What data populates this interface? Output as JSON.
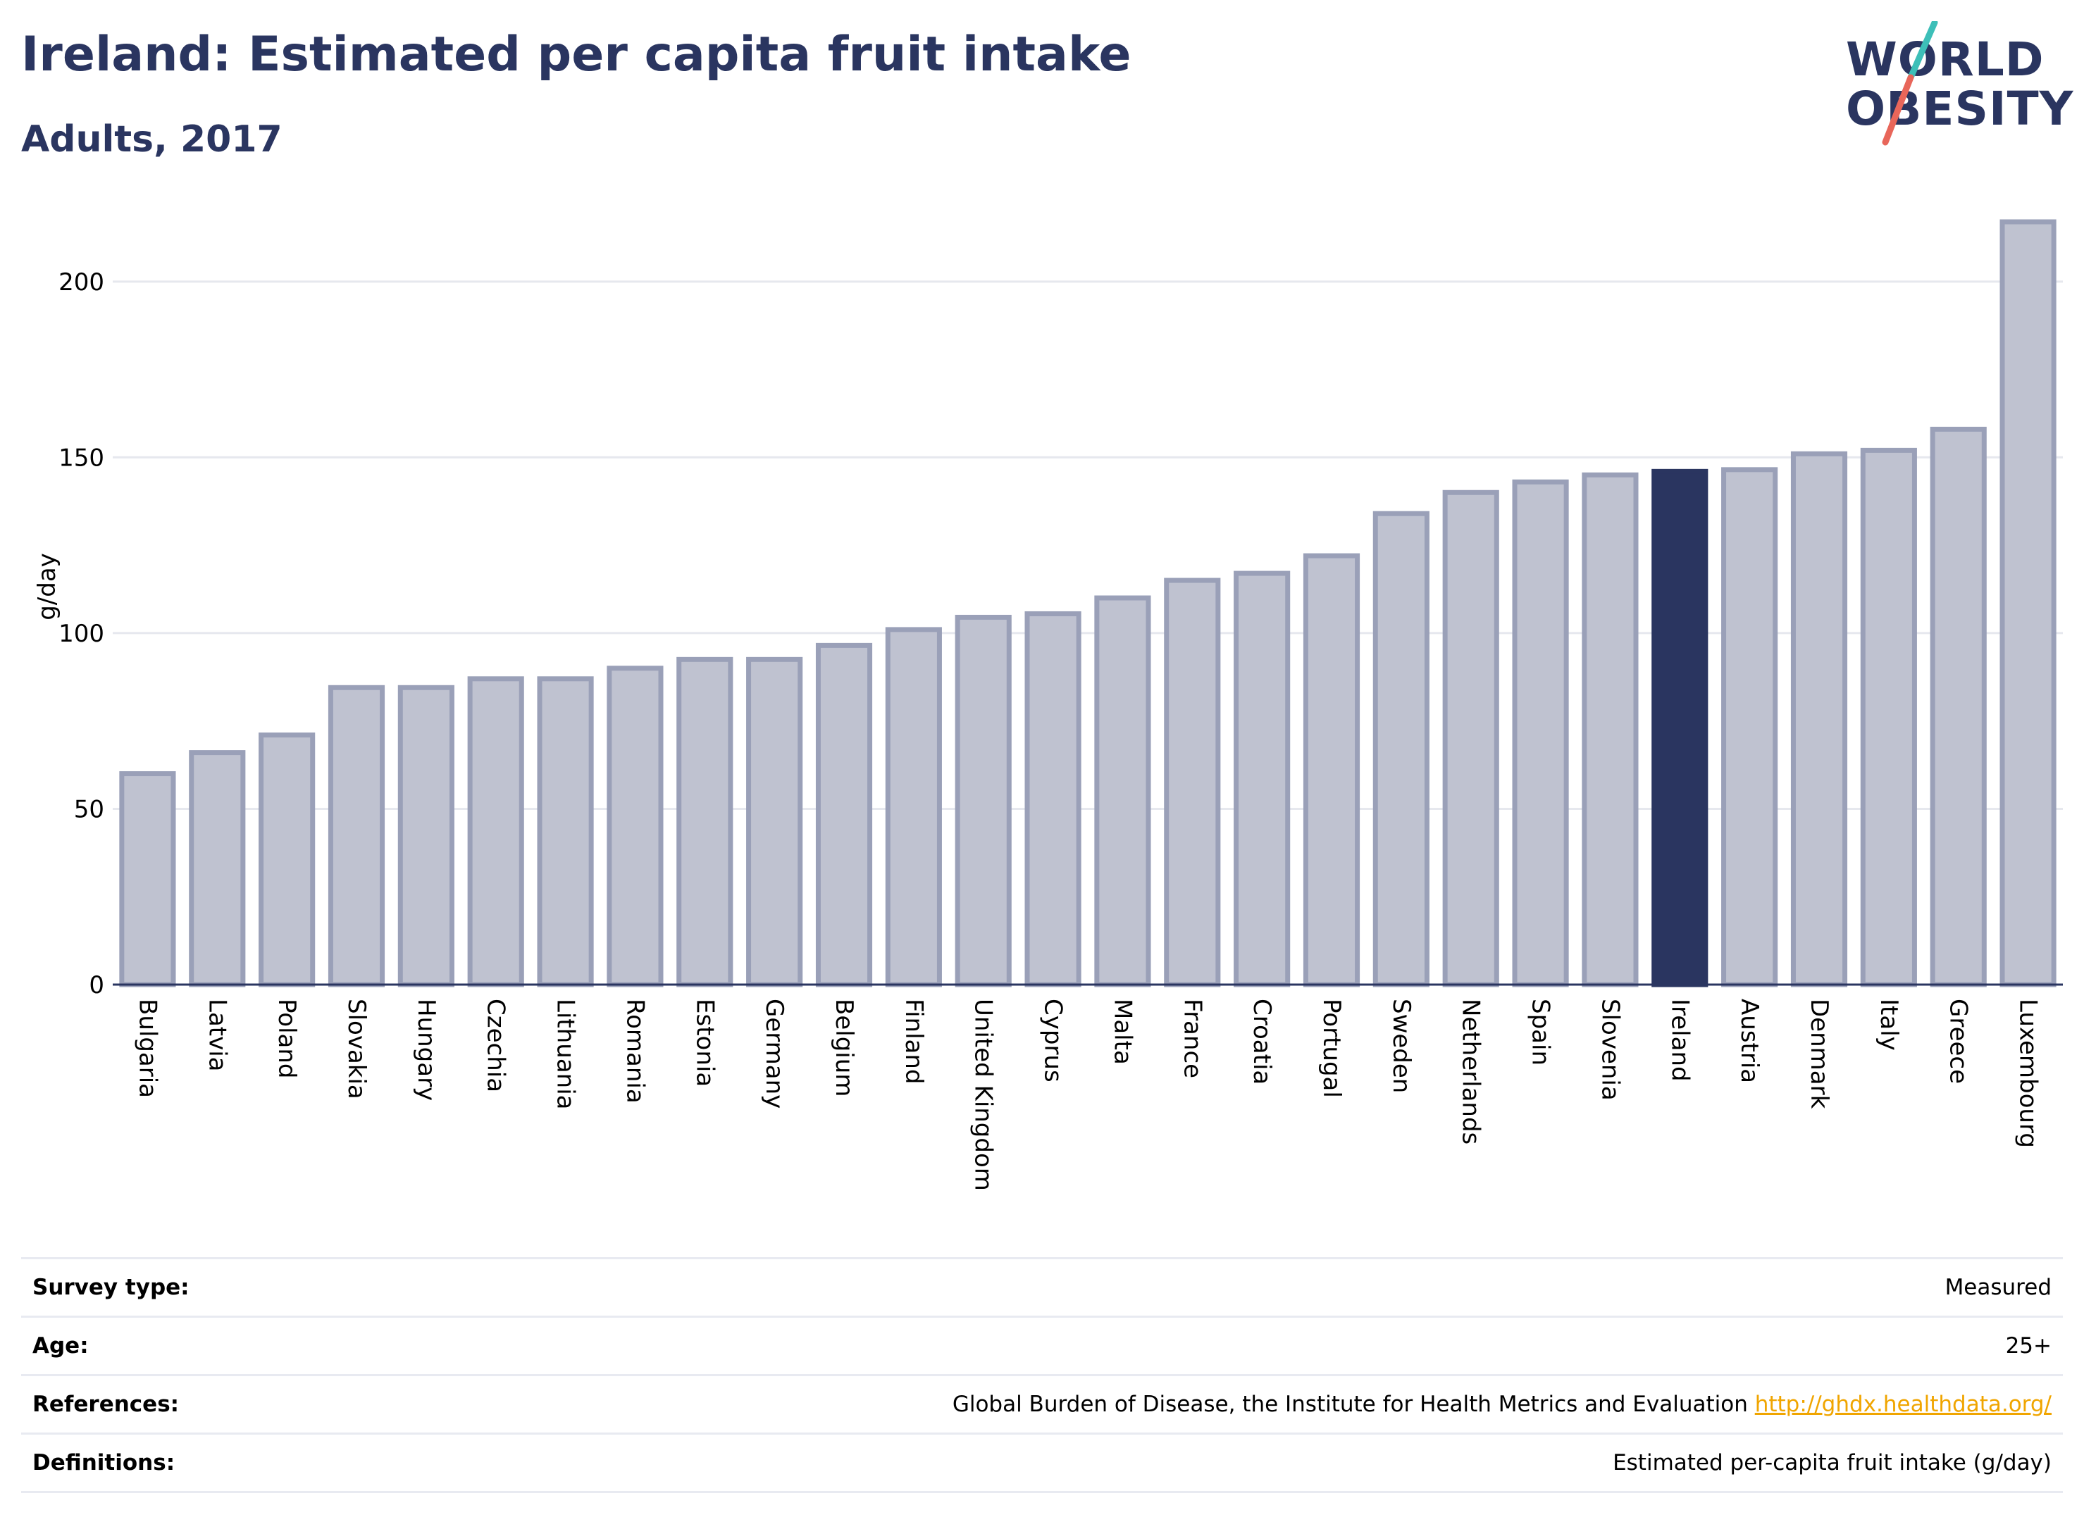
{
  "header": {
    "title": "Ireland: Estimated per capita fruit intake",
    "subtitle": "Adults, 2017"
  },
  "logo": {
    "line1": "WORLD",
    "line2": "OBESITY",
    "slash_colors": [
      "#3dbfb8",
      "#e8665a"
    ]
  },
  "colors": {
    "bar": "#bfc2d0",
    "bar_border": "#9aa0b8",
    "highlight": "#2a3560",
    "grid": "#e6e8ee"
  },
  "chart_data": {
    "type": "bar",
    "title": "Ireland: Estimated per capita fruit intake",
    "subtitle": "Adults, 2017",
    "ylabel": "g/day",
    "xlabel": "",
    "ylim": [
      0,
      220
    ],
    "yticks": [
      0,
      50,
      100,
      150,
      200
    ],
    "grid": true,
    "highlight": "Ireland",
    "categories": [
      "Bulgaria",
      "Latvia",
      "Poland",
      "Slovakia",
      "Hungary",
      "Czechia",
      "Lithuania",
      "Romania",
      "Estonia",
      "Germany",
      "Belgium",
      "Finland",
      "United Kingdom",
      "Cyprus",
      "Malta",
      "France",
      "Croatia",
      "Portugal",
      "Sweden",
      "Netherlands",
      "Spain",
      "Slovenia",
      "Ireland",
      "Austria",
      "Denmark",
      "Italy",
      "Greece",
      "Luxembourg"
    ],
    "values": [
      60,
      66,
      71,
      84.5,
      84.5,
      87,
      87,
      90,
      92.5,
      92.5,
      96.5,
      101,
      104.5,
      105.5,
      110,
      115,
      117,
      122,
      134,
      140,
      143,
      145,
      146,
      146.5,
      151,
      152,
      158,
      217
    ]
  },
  "info": {
    "survey_type": {
      "label": "Survey type:",
      "value": "Measured"
    },
    "age": {
      "label": "Age:",
      "value": "25+"
    },
    "references": {
      "label": "References:",
      "text": "Global Burden of Disease, the Institute for Health Metrics and Evaluation",
      "link": "http://ghdx.healthdata.org/"
    },
    "definitions": {
      "label": "Definitions:",
      "value": "Estimated per-capita fruit intake (g/day)"
    }
  }
}
